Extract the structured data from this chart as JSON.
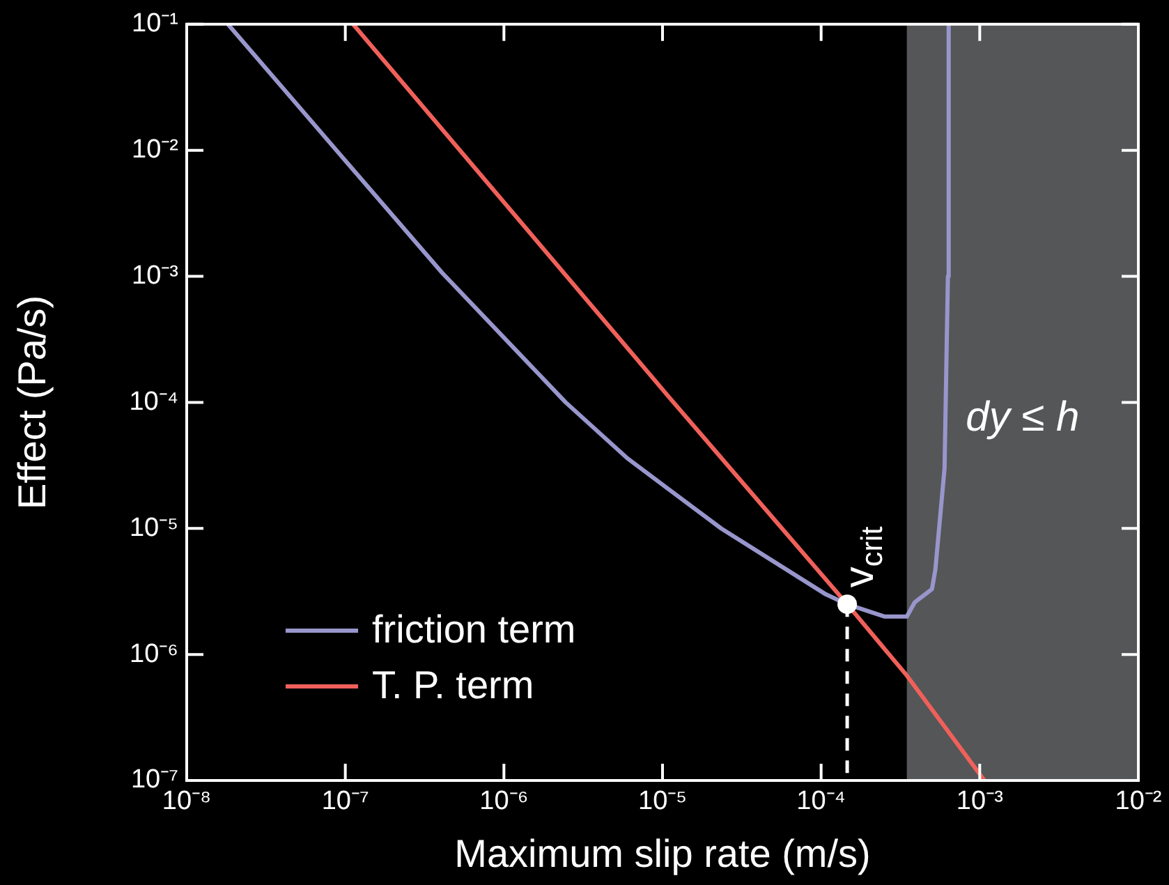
{
  "chart_data": {
    "type": "line",
    "xlabel": "Maximum slip rate (m/s)",
    "ylabel": "Effect (Pa/s)",
    "log": "xy",
    "grid": false,
    "legend": "bottom left",
    "line_style": "solid",
    "marker": "none",
    "xlim": [
      1e-08,
      0.01
    ],
    "ylim": [
      1e-07,
      0.1
    ],
    "xticks": [
      {
        "value": 1e-08,
        "label": "10⁻⁸"
      },
      {
        "value": 1e-07,
        "label": "10⁻⁷"
      },
      {
        "value": 1e-06,
        "label": "10⁻⁶"
      },
      {
        "value": 1e-05,
        "label": "10⁻⁵"
      },
      {
        "value": 0.0001,
        "label": "10⁻⁴"
      },
      {
        "value": 0.001,
        "label": "10⁻³"
      },
      {
        "value": 0.01,
        "label": "10⁻²"
      }
    ],
    "yticks": [
      {
        "value": 1e-07,
        "label": "10⁻⁷"
      },
      {
        "value": 1e-06,
        "label": "10⁻⁶"
      },
      {
        "value": 1e-05,
        "label": "10⁻⁵"
      },
      {
        "value": 0.0001,
        "label": "10⁻⁴"
      },
      {
        "value": 0.001,
        "label": "10⁻³"
      },
      {
        "value": 0.01,
        "label": "10⁻²"
      },
      {
        "value": 0.1,
        "label": "10⁻¹"
      }
    ],
    "series": [
      {
        "name": "friction term",
        "color": "#9896cc",
        "x": [
          1.82e-08,
          8.5e-08,
          4.07e-07,
          2.45e-06,
          6e-06,
          1.12e-05,
          2.34e-05,
          0.000107,
          0.000146,
          0.00025,
          0.000347,
          0.00039,
          0.0005,
          0.000525,
          0.0006,
          0.00063,
          0.000637
        ],
        "values": [
          0.1,
          0.0105,
          0.00107,
          0.0001,
          3.6e-05,
          2e-05,
          1e-05,
          3e-06,
          2.5e-06,
          2e-06,
          2e-06,
          2.6e-06,
          3.3e-06,
          4.7e-06,
          3e-05,
          0.001,
          0.1
        ]
      },
      {
        "name": "T. P. term",
        "color": "#f0605a",
        "x": [
          1.12e-07,
          1.12e-05,
          0.000146,
          0.000347,
          0.00107
        ],
        "values": [
          0.1,
          0.000107,
          2.5e-06,
          6.8e-07,
          1e-07
        ]
      },
      {
        "type": "scatter",
        "color": "#ffffff",
        "marker": "circle",
        "x": [
          0.000146
        ],
        "values": [
          2.5e-06
        ]
      }
    ],
    "bands": [
      {
        "axis": "x",
        "from": 0.000347,
        "to": 0.01,
        "label": "dy ≤ h",
        "color": "#555657"
      }
    ],
    "annotations": [
      {
        "text": "v$_{crit}$",
        "x": 0.000146,
        "y": 2.5e-06
      }
    ]
  }
}
